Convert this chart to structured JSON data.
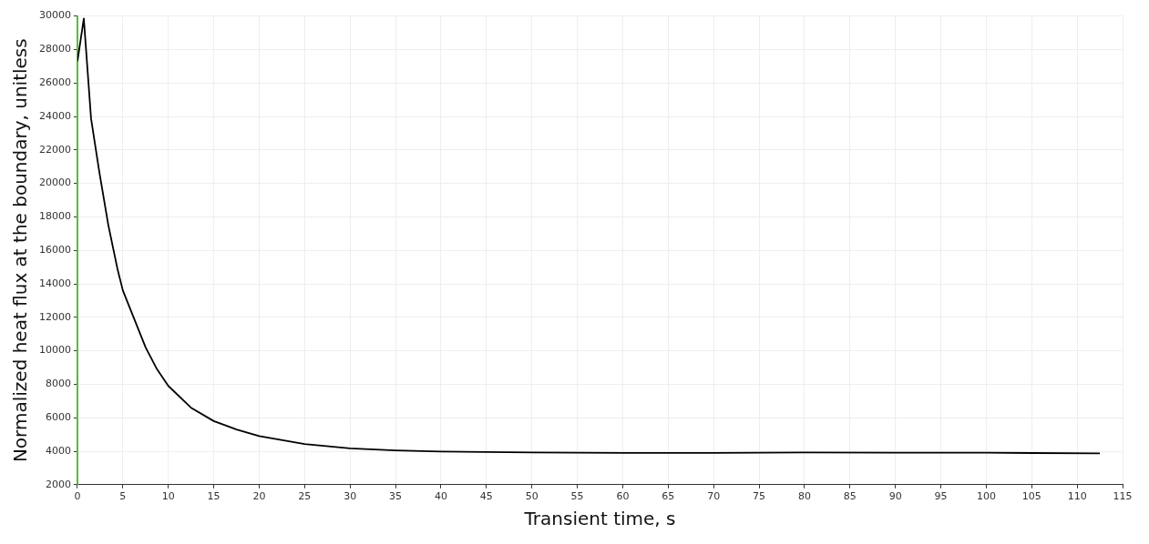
{
  "chart_data": {
    "type": "line",
    "xlabel": "Transient time, s",
    "ylabel": "Normalized heat flux at the boundary, unitless",
    "x": [
      0,
      0.7,
      1.5,
      2.4,
      3.4,
      4.4,
      5,
      6.25,
      7.5,
      8.75,
      10,
      12.5,
      15,
      17.5,
      20,
      25,
      30,
      35,
      40,
      50,
      60,
      70,
      80,
      90,
      100,
      105,
      112.5
    ],
    "series": [
      {
        "color": "#000000",
        "values": [
          27300,
          29850,
          23870,
          20700,
          17500,
          14900,
          13600,
          11900,
          10200,
          8900,
          7900,
          6600,
          5800,
          5300,
          4900,
          4430,
          4170,
          4050,
          3980,
          3930,
          3900,
          3900,
          3920,
          3910,
          3910,
          3890,
          3870
        ]
      }
    ],
    "xlim": [
      0,
      115
    ],
    "xticks": [
      0,
      5,
      10,
      15,
      20,
      25,
      30,
      35,
      40,
      45,
      50,
      55,
      60,
      65,
      70,
      75,
      80,
      85,
      90,
      95,
      100,
      105,
      110,
      115
    ],
    "ylim": [
      2000,
      30000
    ],
    "yticks": [
      2000,
      4000,
      6000,
      8000,
      10000,
      12000,
      14000,
      16000,
      18000,
      20000,
      22000,
      24000,
      26000,
      28000,
      30000
    ],
    "grid": true,
    "legend": false,
    "marker": "none",
    "line_style": "solid",
    "ref_lines": [
      {
        "axis": "x",
        "value": 0,
        "color": "#5cb840"
      }
    ]
  }
}
